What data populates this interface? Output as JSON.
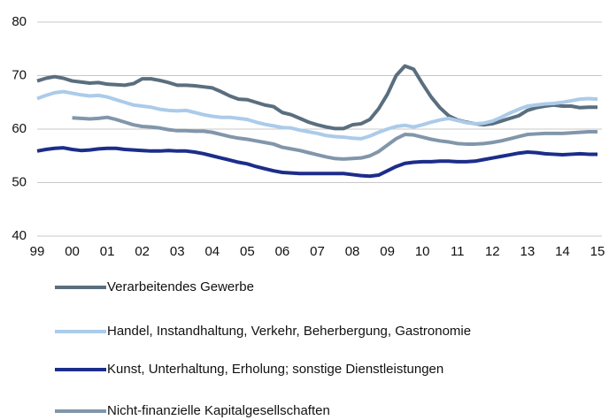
{
  "chart_data": {
    "type": "line",
    "categories": [
      "99",
      null,
      null,
      null,
      "00",
      null,
      null,
      null,
      "01",
      null,
      null,
      null,
      "02",
      null,
      null,
      null,
      "03",
      null,
      null,
      null,
      "04",
      null,
      null,
      null,
      "05",
      null,
      null,
      null,
      "06",
      null,
      null,
      null,
      "07",
      null,
      null,
      null,
      "08",
      null,
      null,
      null,
      "09",
      null,
      null,
      null,
      "10",
      null,
      null,
      null,
      "11",
      null,
      null,
      null,
      "12",
      null,
      null,
      null,
      "13",
      null,
      null,
      null,
      "14",
      null,
      null,
      null,
      "15"
    ],
    "ylim": [
      40,
      80
    ],
    "yticks": [
      40,
      50,
      60,
      70,
      80
    ],
    "grid": true,
    "series": [
      {
        "name": "Verarbeitendes Gewerbe",
        "color": "#5a6e7e",
        "values": [
          69.0,
          69.5,
          69.8,
          69.5,
          69.0,
          68.8,
          68.6,
          68.7,
          68.4,
          68.3,
          68.2,
          68.5,
          69.4,
          69.4,
          69.1,
          68.7,
          68.2,
          68.2,
          68.1,
          67.9,
          67.7,
          67.0,
          66.2,
          65.6,
          65.5,
          65.0,
          64.5,
          64.2,
          63.1,
          62.7,
          62.0,
          61.3,
          60.8,
          60.4,
          60.1,
          60.1,
          60.8,
          61.0,
          61.8,
          63.8,
          66.5,
          70.0,
          71.8,
          71.2,
          68.5,
          66.0,
          64.0,
          62.5,
          61.7,
          61.3,
          61.0,
          60.8,
          61.0,
          61.5,
          62.0,
          62.5,
          63.5,
          64.0,
          64.3,
          64.5,
          64.3,
          64.3,
          64.0,
          64.1,
          64.1
        ]
      },
      {
        "name": "Handel, Instandhaltung, Verkehr, Beherbergung, Gastronomie",
        "color": "#abcbea",
        "values": [
          65.7,
          66.3,
          66.8,
          67.0,
          66.7,
          66.4,
          66.2,
          66.3,
          66.0,
          65.5,
          65.0,
          64.5,
          64.3,
          64.1,
          63.7,
          63.5,
          63.4,
          63.5,
          63.1,
          62.7,
          62.4,
          62.2,
          62.2,
          62.0,
          61.8,
          61.3,
          60.9,
          60.6,
          60.3,
          60.2,
          59.8,
          59.5,
          59.2,
          58.8,
          58.6,
          58.5,
          58.3,
          58.2,
          58.7,
          59.4,
          60.0,
          60.5,
          60.7,
          60.4,
          60.8,
          61.3,
          61.7,
          62.0,
          61.6,
          61.2,
          61.0,
          61.1,
          61.5,
          62.2,
          63.0,
          63.7,
          64.3,
          64.5,
          64.7,
          64.8,
          65.0,
          65.3,
          65.6,
          65.7,
          65.6
        ]
      },
      {
        "name": "Kunst, Unterhaltung, Erholung; sonstige Dienstleistungen",
        "color": "#1c2d8a",
        "values": [
          55.9,
          56.2,
          56.4,
          56.5,
          56.2,
          56.0,
          56.1,
          56.3,
          56.4,
          56.4,
          56.2,
          56.1,
          56.0,
          55.9,
          55.9,
          56.0,
          55.9,
          55.9,
          55.7,
          55.4,
          55.0,
          54.6,
          54.2,
          53.8,
          53.5,
          53.0,
          52.6,
          52.2,
          51.9,
          51.8,
          51.7,
          51.7,
          51.7,
          51.7,
          51.7,
          51.7,
          51.5,
          51.3,
          51.2,
          51.4,
          52.2,
          53.0,
          53.6,
          53.8,
          53.9,
          53.9,
          54.0,
          54.0,
          53.9,
          53.9,
          54.0,
          54.3,
          54.6,
          54.9,
          55.2,
          55.5,
          55.7,
          55.6,
          55.4,
          55.3,
          55.2,
          55.3,
          55.4,
          55.3,
          55.3
        ]
      },
      {
        "name": "Nicht-finanzielle Kapitalgesellschaften",
        "color": "#8196aa",
        "values": [
          null,
          null,
          null,
          null,
          62.1,
          62.0,
          61.9,
          62.0,
          62.2,
          61.8,
          61.3,
          60.8,
          60.5,
          60.4,
          60.2,
          59.9,
          59.7,
          59.7,
          59.6,
          59.6,
          59.4,
          59.0,
          58.6,
          58.3,
          58.1,
          57.8,
          57.5,
          57.2,
          56.6,
          56.3,
          56.0,
          55.6,
          55.2,
          54.8,
          54.5,
          54.4,
          54.5,
          54.6,
          55.0,
          55.8,
          57.0,
          58.2,
          59.0,
          58.9,
          58.5,
          58.1,
          57.8,
          57.6,
          57.3,
          57.2,
          57.2,
          57.3,
          57.5,
          57.8,
          58.2,
          58.6,
          59.0,
          59.1,
          59.2,
          59.2,
          59.2,
          59.3,
          59.4,
          59.5,
          59.5
        ]
      }
    ]
  }
}
